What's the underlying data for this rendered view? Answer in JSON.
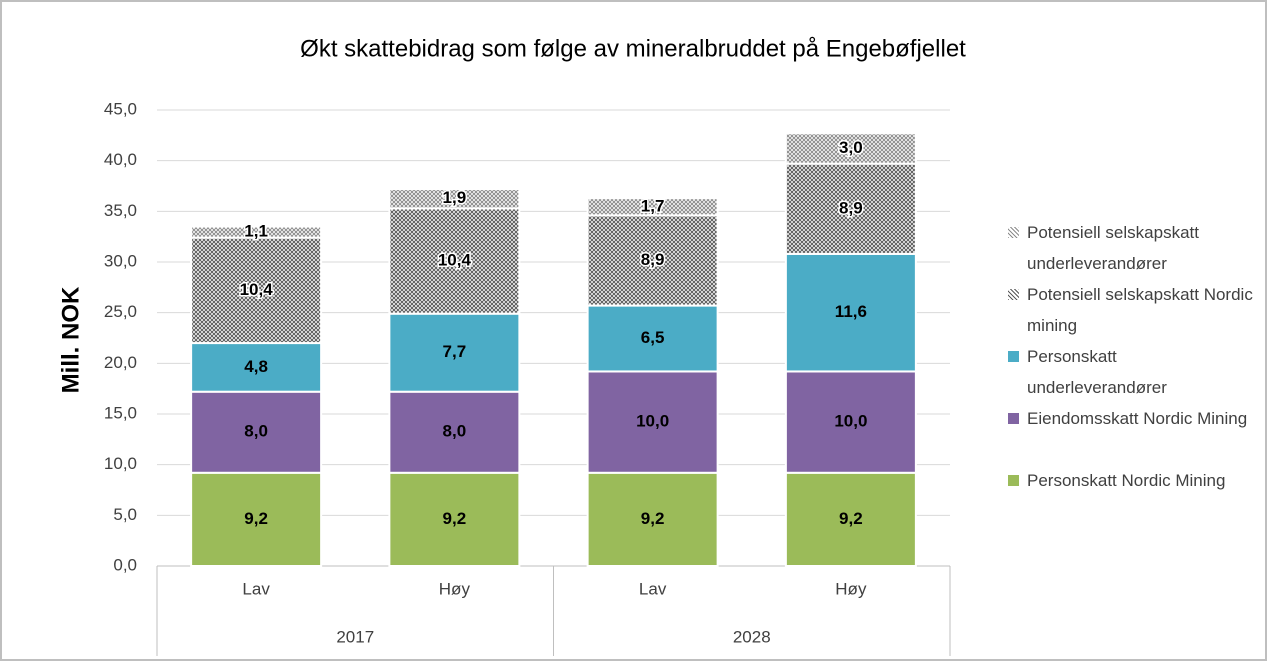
{
  "chart_data": {
    "type": "stacked_bar",
    "title": "Økt skattebidrag som følge av mineralbruddet på Engebøfjellet",
    "y_label": "Mill. NOK",
    "categories": [
      "Lav",
      "Høy",
      "Lav",
      "Høy"
    ],
    "groups": [
      "2017",
      "2028"
    ],
    "ylim": [
      0,
      45
    ],
    "yticks": [
      {
        "value": 0,
        "label": "0,0"
      },
      {
        "value": 5,
        "label": "5,0"
      },
      {
        "value": 10,
        "label": "10,0"
      },
      {
        "value": 15,
        "label": "15,0"
      },
      {
        "value": 20,
        "label": "20,0"
      },
      {
        "value": 25,
        "label": "25,0"
      },
      {
        "value": 30,
        "label": "30,0"
      },
      {
        "value": 35,
        "label": "35,0"
      },
      {
        "value": 40,
        "label": "40,0"
      },
      {
        "value": 45,
        "label": "45,0"
      }
    ],
    "grid": true,
    "legend": "right",
    "series": [
      {
        "name": "Personskatt Nordic Mining",
        "color": "#9bbb59",
        "values": [
          9.2,
          9.2,
          9.2,
          9.2
        ],
        "value_labels": [
          "9,2",
          "9,2",
          "9,2",
          "9,2"
        ]
      },
      {
        "name": "Eiendomsskatt Nordic Mining",
        "color": "#8064a2",
        "values": [
          8.0,
          8.0,
          10.0,
          10.0
        ],
        "value_labels": [
          "8,0",
          "8,0",
          "10,0",
          "10,0"
        ]
      },
      {
        "name": "Personskatt underleverandører",
        "color": "#4bacc6",
        "values": [
          4.8,
          7.7,
          6.5,
          11.6
        ],
        "value_labels": [
          "4,8",
          "7,7",
          "6,5",
          "11,6"
        ]
      },
      {
        "name": "Potensiell selskapskatt Nordic mining",
        "color": "#5a5a5a",
        "hatch": true,
        "values": [
          10.4,
          10.4,
          8.9,
          8.9
        ],
        "value_labels": [
          "10,4",
          "10,4",
          "8,9",
          "8,9"
        ]
      },
      {
        "name": "Potensiell selskapskatt underleverandører",
        "color": "#8c8c8c",
        "hatch": true,
        "values": [
          1.1,
          1.9,
          1.7,
          3.0
        ],
        "value_labels": [
          "1,1",
          "1,9",
          "1,7",
          "3,0"
        ]
      }
    ]
  }
}
